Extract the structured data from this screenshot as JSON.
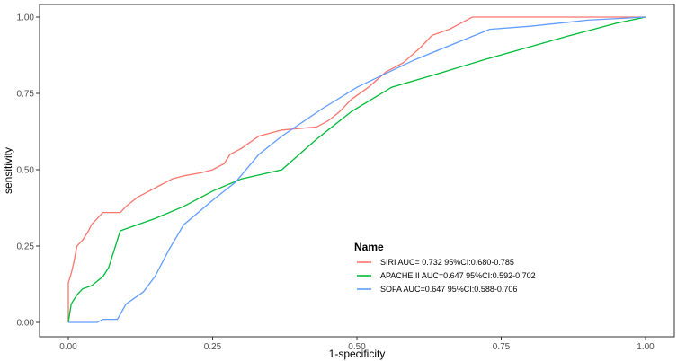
{
  "chart_data": {
    "type": "line",
    "xlabel": "1-specificity",
    "ylabel": "sensitivity",
    "xlim": [
      0,
      1
    ],
    "ylim": [
      0,
      1
    ],
    "x_ticks": [
      "0.00",
      "0.25",
      "0.50",
      "0.75",
      "1.00"
    ],
    "y_ticks": [
      "0.00",
      "0.25",
      "0.50",
      "0.75",
      "1.00"
    ],
    "grid": false,
    "legend_title": "Name",
    "legend_position": "bottom-center",
    "series": [
      {
        "name": "SIRI AUC= 0.732 95%CI:0.680-0.785",
        "color": "#F8766D",
        "points": [
          [
            0.0,
            0.0
          ],
          [
            0.0,
            0.13
          ],
          [
            0.005,
            0.16
          ],
          [
            0.01,
            0.2
          ],
          [
            0.015,
            0.25
          ],
          [
            0.025,
            0.27
          ],
          [
            0.035,
            0.3
          ],
          [
            0.04,
            0.32
          ],
          [
            0.05,
            0.34
          ],
          [
            0.06,
            0.36
          ],
          [
            0.09,
            0.36
          ],
          [
            0.1,
            0.38
          ],
          [
            0.12,
            0.41
          ],
          [
            0.14,
            0.43
          ],
          [
            0.16,
            0.45
          ],
          [
            0.18,
            0.47
          ],
          [
            0.2,
            0.48
          ],
          [
            0.23,
            0.49
          ],
          [
            0.25,
            0.5
          ],
          [
            0.27,
            0.52
          ],
          [
            0.28,
            0.55
          ],
          [
            0.3,
            0.57
          ],
          [
            0.33,
            0.61
          ],
          [
            0.37,
            0.63
          ],
          [
            0.43,
            0.64
          ],
          [
            0.45,
            0.66
          ],
          [
            0.47,
            0.69
          ],
          [
            0.49,
            0.73
          ],
          [
            0.52,
            0.77
          ],
          [
            0.55,
            0.82
          ],
          [
            0.58,
            0.85
          ],
          [
            0.61,
            0.9
          ],
          [
            0.63,
            0.94
          ],
          [
            0.66,
            0.96
          ],
          [
            0.68,
            0.98
          ],
          [
            0.7,
            1.0
          ],
          [
            1.0,
            1.0
          ]
        ]
      },
      {
        "name": "APACHE II AUC=0.647 95%CI:0.592-0.702",
        "color": "#00BA38",
        "points": [
          [
            0.0,
            0.0
          ],
          [
            0.005,
            0.06
          ],
          [
            0.015,
            0.09
          ],
          [
            0.025,
            0.11
          ],
          [
            0.04,
            0.12
          ],
          [
            0.06,
            0.15
          ],
          [
            0.07,
            0.18
          ],
          [
            0.09,
            0.3
          ],
          [
            0.15,
            0.34
          ],
          [
            0.2,
            0.38
          ],
          [
            0.25,
            0.43
          ],
          [
            0.3,
            0.47
          ],
          [
            0.37,
            0.5
          ],
          [
            0.43,
            0.6
          ],
          [
            0.49,
            0.69
          ],
          [
            0.56,
            0.77
          ],
          [
            0.65,
            0.82
          ],
          [
            0.72,
            0.86
          ],
          [
            0.87,
            0.94
          ],
          [
            0.95,
            0.98
          ],
          [
            1.0,
            1.0
          ]
        ]
      },
      {
        "name": "SOFA AUC=0.647 95%CI:0.588-0.706",
        "color": "#619CFF",
        "points": [
          [
            0.0,
            0.0
          ],
          [
            0.05,
            0.0
          ],
          [
            0.06,
            0.01
          ],
          [
            0.085,
            0.01
          ],
          [
            0.1,
            0.06
          ],
          [
            0.13,
            0.1
          ],
          [
            0.15,
            0.15
          ],
          [
            0.175,
            0.24
          ],
          [
            0.2,
            0.32
          ],
          [
            0.25,
            0.4
          ],
          [
            0.29,
            0.46
          ],
          [
            0.33,
            0.55
          ],
          [
            0.37,
            0.61
          ],
          [
            0.44,
            0.7
          ],
          [
            0.5,
            0.77
          ],
          [
            0.6,
            0.86
          ],
          [
            0.73,
            0.96
          ],
          [
            0.8,
            0.97
          ],
          [
            0.9,
            0.99
          ],
          [
            1.0,
            1.0
          ]
        ]
      }
    ]
  }
}
